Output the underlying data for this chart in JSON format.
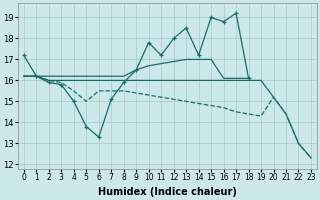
{
  "xlabel": "Humidex (Indice chaleur)",
  "bg_color": "#cce8e8",
  "line_color": "#1a6b6b",
  "xlim": [
    -0.5,
    23.5
  ],
  "ylim": [
    11.8,
    19.7
  ],
  "xticks": [
    0,
    1,
    2,
    3,
    4,
    5,
    6,
    7,
    8,
    9,
    10,
    11,
    12,
    13,
    14,
    15,
    16,
    17,
    18,
    19,
    20,
    21,
    22,
    23
  ],
  "yticks": [
    12,
    13,
    14,
    15,
    16,
    17,
    18,
    19
  ],
  "series": [
    {
      "x": [
        0,
        1,
        2,
        3,
        4,
        5,
        6,
        7,
        8,
        9,
        10,
        11,
        12,
        13,
        14,
        15,
        16,
        17,
        18
      ],
      "y": [
        17.2,
        16.2,
        15.9,
        15.8,
        15.0,
        13.8,
        13.3,
        15.1,
        15.9,
        16.5,
        17.8,
        17.2,
        18.0,
        18.5,
        17.2,
        19.0,
        18.8,
        19.2,
        16.1
      ],
      "style": "solid",
      "marker": true
    },
    {
      "x": [
        0,
        1,
        2,
        3,
        4,
        5,
        6,
        7,
        8,
        9,
        10,
        11,
        12,
        13,
        14,
        15,
        16,
        17,
        18
      ],
      "y": [
        16.2,
        16.2,
        16.2,
        16.2,
        16.2,
        16.2,
        16.2,
        16.2,
        16.2,
        16.5,
        16.7,
        16.8,
        16.9,
        17.0,
        17.0,
        17.0,
        16.1,
        16.1,
        16.1
      ],
      "style": "solid",
      "marker": false
    },
    {
      "x": [
        0,
        1,
        2,
        3,
        4,
        5,
        6,
        7,
        8,
        9,
        10,
        11,
        12,
        13,
        14,
        15,
        16,
        17,
        18,
        19,
        20,
        21,
        22,
        23
      ],
      "y": [
        16.2,
        16.2,
        16.0,
        16.0,
        16.0,
        16.0,
        16.0,
        16.0,
        16.0,
        16.0,
        16.0,
        16.0,
        16.0,
        16.0,
        16.0,
        16.0,
        16.0,
        16.0,
        16.0,
        16.0,
        15.2,
        14.4,
        13.0,
        12.3
      ],
      "style": "solid",
      "marker": false
    },
    {
      "x": [
        0,
        1,
        2,
        3,
        4,
        5,
        6,
        7,
        8,
        9,
        10,
        11,
        12,
        13,
        14,
        15,
        16,
        17,
        18,
        19,
        20,
        21,
        22,
        23
      ],
      "y": [
        16.2,
        16.2,
        16.0,
        15.9,
        15.5,
        15.0,
        15.5,
        15.5,
        15.5,
        15.4,
        15.3,
        15.2,
        15.1,
        15.0,
        14.9,
        14.8,
        14.7,
        14.5,
        14.4,
        14.3,
        15.2,
        14.4,
        13.0,
        12.3
      ],
      "style": "dashed",
      "marker": false
    }
  ]
}
